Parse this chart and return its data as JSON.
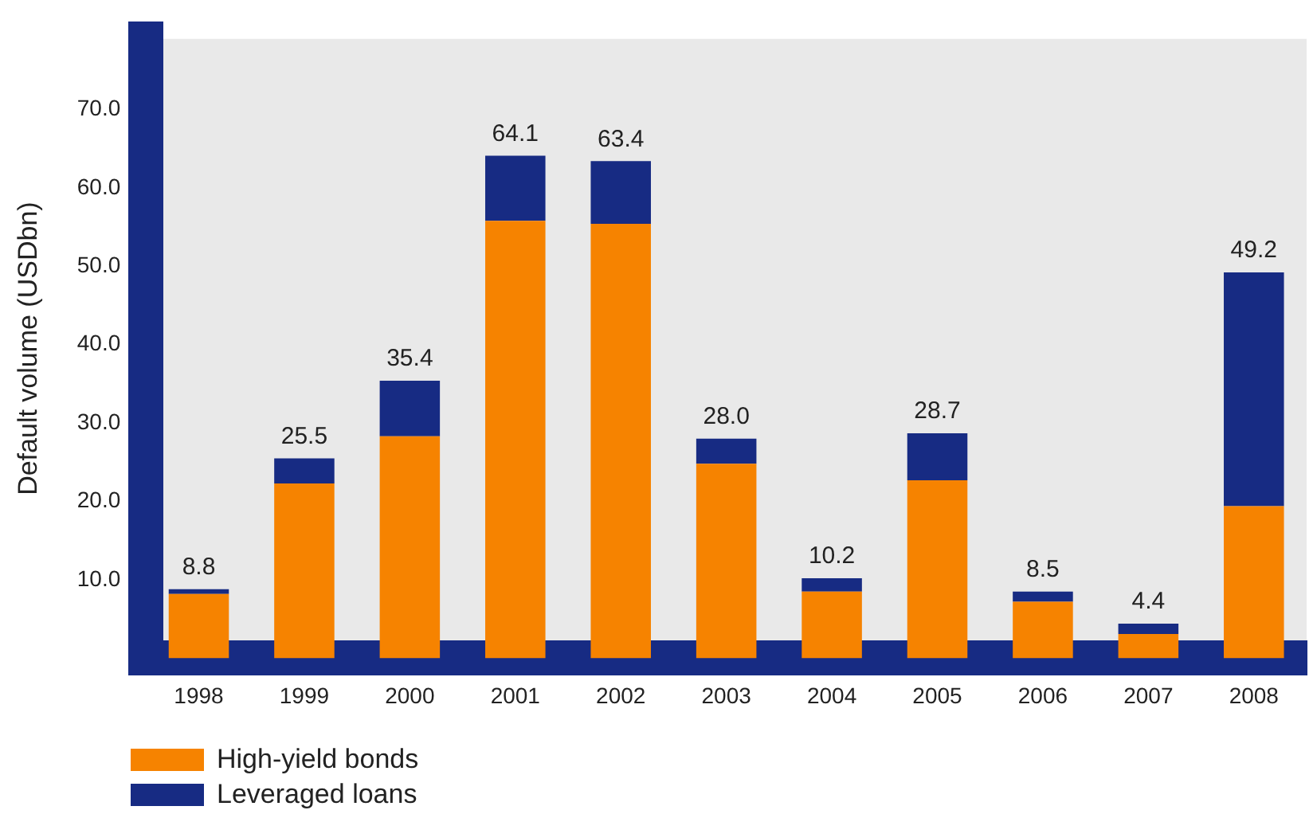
{
  "chart_data": {
    "type": "bar",
    "stacked": true,
    "ylabel": "Default volume (USDbn)",
    "categories": [
      "1998",
      "1999",
      "2000",
      "2001",
      "2002",
      "2003",
      "2004",
      "2005",
      "2006",
      "2007",
      "2008"
    ],
    "series": [
      {
        "name": "High-yield bonds",
        "color": "#f68300",
        "values": [
          8.2,
          22.3,
          28.3,
          55.8,
          55.4,
          24.8,
          8.5,
          22.7,
          7.2,
          3.1,
          19.4
        ]
      },
      {
        "name": "Leveraged loans",
        "color": "#172b83",
        "values": [
          0.6,
          3.2,
          7.1,
          8.3,
          8.0,
          3.2,
          1.7,
          6.0,
          1.3,
          1.3,
          29.8
        ]
      }
    ],
    "totals": [
      "8.8",
      "25.5",
      "35.4",
      "64.1",
      "63.4",
      "28.0",
      "10.2",
      "28.7",
      "8.5",
      "4.4",
      "49.2"
    ],
    "ylim": [
      0,
      79
    ],
    "yticks": [
      {
        "value": 0,
        "label": null
      },
      {
        "value": 10,
        "label": "10.0"
      },
      {
        "value": 20,
        "label": "20.0"
      },
      {
        "value": 30,
        "label": "30.0"
      },
      {
        "value": 40,
        "label": "40.0"
      },
      {
        "value": 50,
        "label": "50.0"
      },
      {
        "value": 60,
        "label": "60.0"
      },
      {
        "value": 70,
        "label": "70.0"
      }
    ],
    "grid": false,
    "legend": "bottom left"
  }
}
